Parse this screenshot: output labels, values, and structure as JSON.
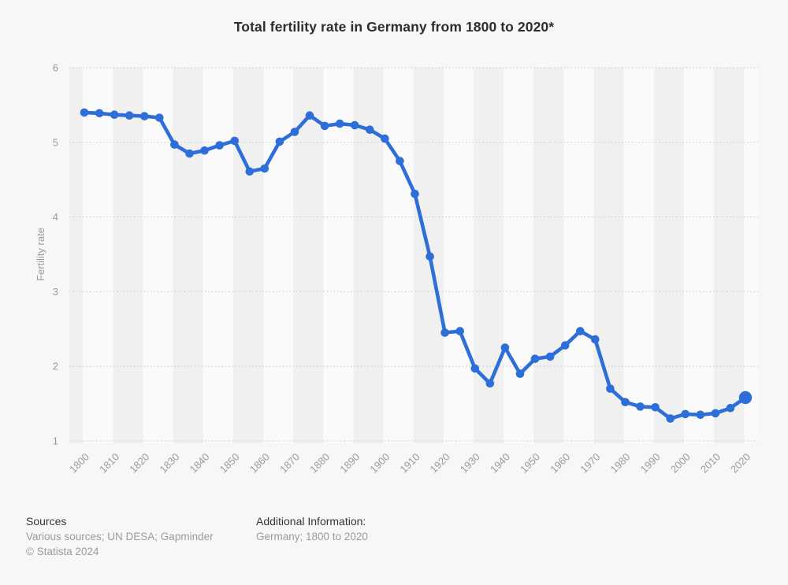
{
  "chart": {
    "title": "Total fertility rate in Germany from 1800 to 2020*"
  },
  "chart_data": {
    "type": "line",
    "title": "Total fertility rate in Germany from 1800 to 2020*",
    "xlabel": "",
    "ylabel": "Fertility rate",
    "x": [
      1800,
      1805,
      1810,
      1815,
      1820,
      1825,
      1830,
      1835,
      1840,
      1845,
      1850,
      1855,
      1860,
      1865,
      1870,
      1875,
      1880,
      1885,
      1890,
      1895,
      1900,
      1905,
      1910,
      1915,
      1920,
      1925,
      1930,
      1935,
      1940,
      1945,
      1950,
      1955,
      1960,
      1965,
      1970,
      1975,
      1980,
      1985,
      1990,
      1995,
      2000,
      2005,
      2010,
      2015,
      2020
    ],
    "values": [
      5.4,
      5.39,
      5.37,
      5.36,
      5.35,
      5.33,
      4.97,
      4.85,
      4.89,
      4.96,
      5.02,
      4.61,
      4.65,
      5.01,
      5.14,
      5.36,
      5.22,
      5.25,
      5.23,
      5.17,
      5.05,
      4.75,
      4.31,
      3.47,
      2.45,
      2.47,
      1.97,
      1.77,
      2.25,
      1.9,
      2.1,
      2.13,
      2.28,
      2.47,
      2.36,
      1.7,
      1.52,
      1.46,
      1.45,
      1.3,
      1.36,
      1.35,
      1.37,
      1.44,
      1.58
    ],
    "x_tick_labels": [
      "1800",
      "1810",
      "1820",
      "1830",
      "1840",
      "1850",
      "1860",
      "1870",
      "1880",
      "1890",
      "1900",
      "1910",
      "1920",
      "1930",
      "1940",
      "1950",
      "1960",
      "1970",
      "1980",
      "1990",
      "2000",
      "2010",
      "2020"
    ],
    "yticks": [
      1,
      2,
      3,
      4,
      5,
      6
    ],
    "ylim": [
      1,
      6
    ],
    "xlim": [
      1800,
      2020
    ],
    "grid": "horizontal-dotted",
    "legend": "none",
    "series_name": "Fertility rate",
    "colors": {
      "line": "#2d6ed9",
      "marker": "#2d6ed9",
      "grid": "#c9c9c9",
      "tick_text": "#9b9b9b",
      "band_light": "#fafafa",
      "band_dark": "#f0f0f0",
      "background": "#f7f7f7",
      "title_text": "#2d2d2d"
    }
  },
  "footer": {
    "sources_label": "Sources",
    "sources_text": "Various sources; UN DESA; Gapminder",
    "copyright": "© Statista 2024",
    "additional_info_label": "Additional Information:",
    "additional_info_text": "Germany; 1800 to 2020"
  }
}
